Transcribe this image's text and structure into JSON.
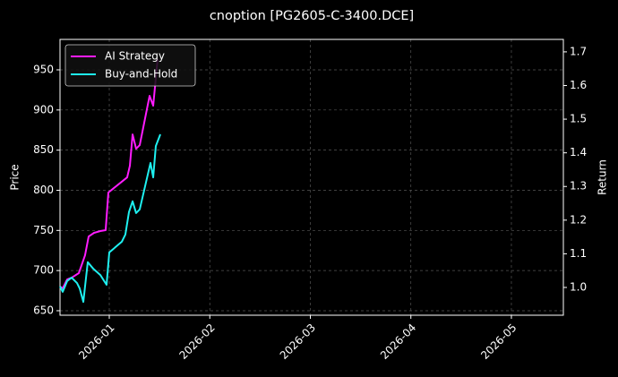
{
  "chart_data": {
    "type": "line",
    "title": "cnoption [PG2605-C-3400.DCE]",
    "y_label": "Price",
    "y2_label": "Return",
    "xlim": [
      -0.49,
      4.517
    ],
    "xticks": [
      {
        "value": 0,
        "label": "2026-01"
      },
      {
        "value": 1,
        "label": "2026-02"
      },
      {
        "value": 2,
        "label": "2026-03"
      },
      {
        "value": 3,
        "label": "2026-04"
      },
      {
        "value": 4,
        "label": "2026-05"
      }
    ],
    "ylim": [
      644.4,
      987.9
    ],
    "yticks": [
      650,
      700,
      750,
      800,
      850,
      900,
      950
    ],
    "y2lim": [
      0.9175,
      1.737
    ],
    "y2ticks": [
      {
        "value": 1.0,
        "label": "1.0"
      },
      1.1,
      1.2,
      1.3,
      1.4,
      1.5,
      1.6,
      1.7
    ],
    "grid": true,
    "legend": "upper left",
    "series": [
      {
        "name": "AI Strategy",
        "color": "#ff1cff",
        "axis": "y",
        "x": [
          -0.49,
          -0.463,
          -0.419,
          -0.374,
          -0.303,
          -0.241,
          -0.205,
          -0.151,
          -0.089,
          -0.036,
          -0.009,
          0.178,
          0.205,
          0.232,
          0.267,
          0.303,
          0.401,
          0.437,
          0.481
        ],
        "values": [
          680.1,
          677.9,
          689.0,
          691.2,
          696.8,
          719.1,
          742.5,
          747.0,
          749.2,
          750.3,
          797.2,
          816.1,
          830.6,
          869.6,
          851.8,
          856.2,
          917.6,
          905.3,
          963.3
        ]
      },
      {
        "name": "Buy-and-Hold",
        "color": "#1ef0f0",
        "axis": "y2",
        "x": [
          -0.49,
          -0.463,
          -0.419,
          -0.374,
          -0.321,
          -0.294,
          -0.258,
          -0.214,
          -0.16,
          -0.089,
          -0.027,
          0,
          0.125,
          0.16,
          0.196,
          0.232,
          0.267,
          0.303,
          0.41,
          0.437,
          0.463,
          0.508
        ],
        "values": [
          1.003,
          0.987,
          1.019,
          1.029,
          1.013,
          0.997,
          0.957,
          1.075,
          1.056,
          1.037,
          1.008,
          1.104,
          1.136,
          1.157,
          1.224,
          1.256,
          1.221,
          1.232,
          1.37,
          1.327,
          1.42,
          1.455
        ]
      }
    ]
  }
}
